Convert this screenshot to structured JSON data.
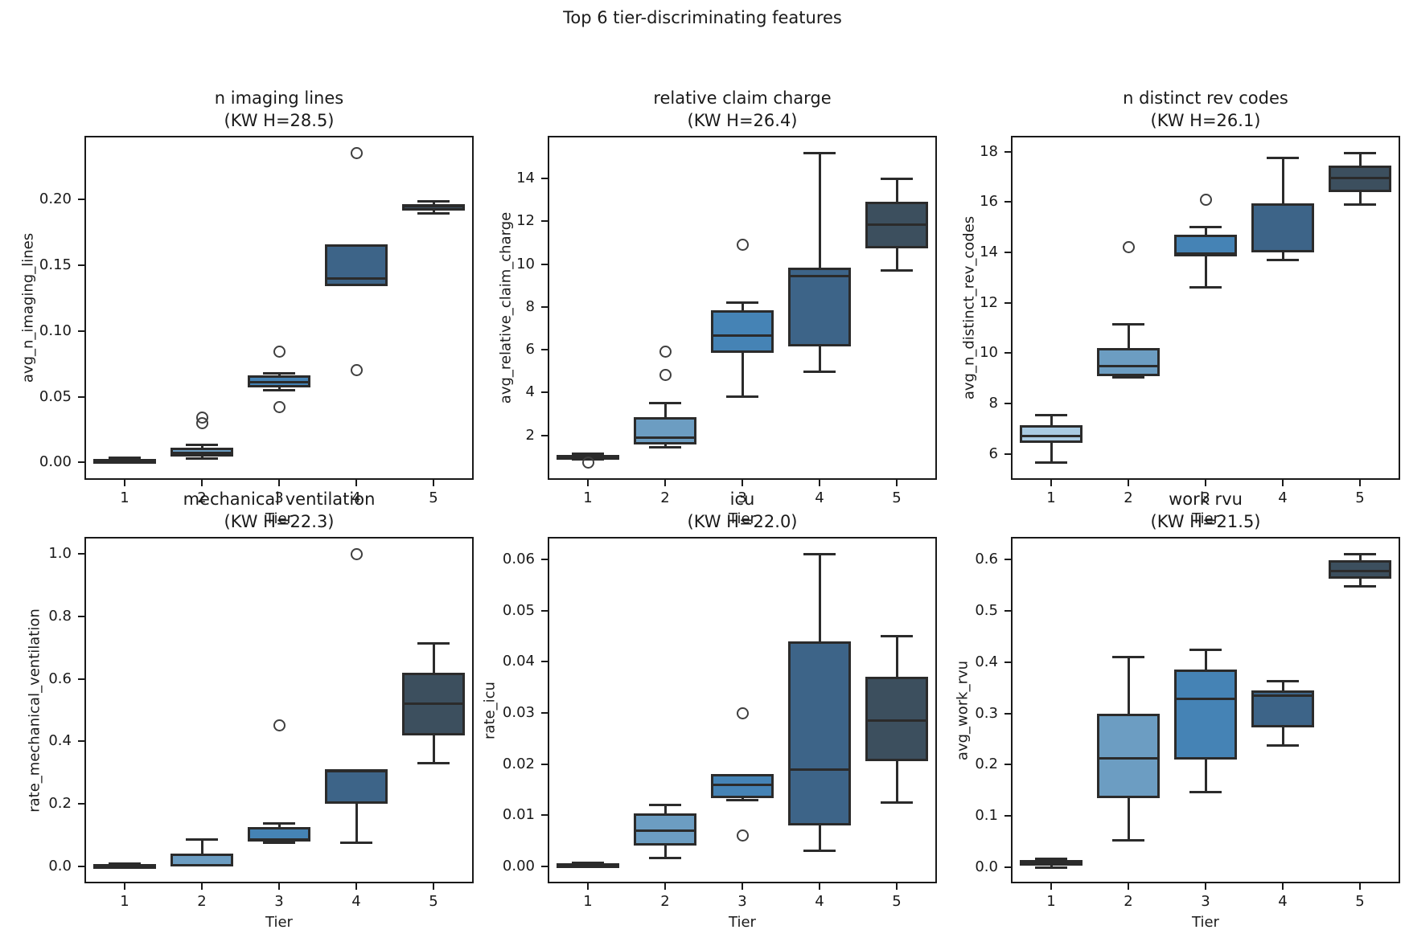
{
  "figure_title": "Top 6 tier-discriminating features",
  "xlabel": "Tier",
  "x_tick_labels": [
    "1",
    "2",
    "3",
    "4",
    "5"
  ],
  "palette": {
    "tier1": "#A9CBE3",
    "tier2": "#6C9DC2",
    "tier3": "#4583B5",
    "tier4": "#3D6488",
    "tier5": "#3C4F5E"
  },
  "edge_color": "#2B2B2B",
  "chart_data": [
    {
      "type": "box",
      "title": "n imaging lines",
      "subtitle": "(KW H=28.5)",
      "kw_h": 28.5,
      "ylabel": "avg_n_imaging_lines",
      "xlabel": "Tier",
      "categories": [
        "1",
        "2",
        "3",
        "4",
        "5"
      ],
      "ylim": [
        -0.012,
        0.247
      ],
      "yticks": [
        {
          "v": 0.0,
          "label": "0.00"
        },
        {
          "v": 0.05,
          "label": "0.05"
        },
        {
          "v": 0.1,
          "label": "0.10"
        },
        {
          "v": 0.15,
          "label": "0.15"
        },
        {
          "v": 0.2,
          "label": "0.20"
        }
      ],
      "boxes": [
        {
          "tier": "1",
          "whislo": 0.0003,
          "q1": 0.0008,
          "med": 0.0018,
          "q3": 0.0028,
          "whishi": 0.0036,
          "fliers": []
        },
        {
          "tier": "2",
          "whislo": 0.003,
          "q1": 0.0045,
          "med": 0.007,
          "q3": 0.011,
          "whishi": 0.0135,
          "fliers": [
            0.03,
            0.034
          ]
        },
        {
          "tier": "3",
          "whislo": 0.055,
          "q1": 0.057,
          "med": 0.061,
          "q3": 0.066,
          "whishi": 0.068,
          "fliers": [
            0.084,
            0.042
          ]
        },
        {
          "tier": "4",
          "whislo": 0.134,
          "q1": 0.134,
          "med": 0.14,
          "q3": 0.166,
          "whishi": 0.166,
          "fliers": [
            0.235,
            0.07
          ]
        },
        {
          "tier": "5",
          "whislo": 0.189,
          "q1": 0.1915,
          "med": 0.1945,
          "q3": 0.1965,
          "whishi": 0.1985,
          "fliers": []
        }
      ]
    },
    {
      "type": "box",
      "title": "relative claim charge",
      "subtitle": "(KW H=26.4)",
      "kw_h": 26.4,
      "ylabel": "avg_relative_claim_charge",
      "xlabel": "Tier",
      "categories": [
        "1",
        "2",
        "3",
        "4",
        "5"
      ],
      "ylim": [
        -0.01,
        15.92
      ],
      "yticks": [
        {
          "v": 2,
          "label": "2"
        },
        {
          "v": 4,
          "label": "4"
        },
        {
          "v": 6,
          "label": "6"
        },
        {
          "v": 8,
          "label": "8"
        },
        {
          "v": 10,
          "label": "10"
        },
        {
          "v": 12,
          "label": "12"
        },
        {
          "v": 14,
          "label": "14"
        }
      ],
      "boxes": [
        {
          "tier": "1",
          "whislo": 0.88,
          "q1": 0.93,
          "med": 1.0,
          "q3": 1.07,
          "whishi": 1.12,
          "fliers": [
            0.72
          ]
        },
        {
          "tier": "2",
          "whislo": 1.45,
          "q1": 1.55,
          "med": 1.9,
          "q3": 2.85,
          "whishi": 3.5,
          "fliers": [
            5.9,
            4.8
          ]
        },
        {
          "tier": "3",
          "whislo": 3.8,
          "q1": 5.85,
          "med": 6.65,
          "q3": 7.85,
          "whishi": 8.2,
          "fliers": [
            10.9
          ]
        },
        {
          "tier": "4",
          "whislo": 4.95,
          "q1": 6.15,
          "med": 9.45,
          "q3": 9.85,
          "whishi": 15.2,
          "fliers": []
        },
        {
          "tier": "5",
          "whislo": 9.7,
          "q1": 10.75,
          "med": 11.85,
          "q3": 12.9,
          "whishi": 14.0,
          "fliers": []
        }
      ]
    },
    {
      "type": "box",
      "title": "n distinct rev codes",
      "subtitle": "(KW H=26.1)",
      "kw_h": 26.1,
      "ylabel": "avg_n_distinct_rev_codes",
      "xlabel": "Tier",
      "categories": [
        "1",
        "2",
        "3",
        "4",
        "5"
      ],
      "ylim": [
        5.03,
        18.57
      ],
      "yticks": [
        {
          "v": 6,
          "label": "6"
        },
        {
          "v": 8,
          "label": "8"
        },
        {
          "v": 10,
          "label": "10"
        },
        {
          "v": 12,
          "label": "12"
        },
        {
          "v": 14,
          "label": "14"
        },
        {
          "v": 16,
          "label": "16"
        },
        {
          "v": 18,
          "label": "18"
        }
      ],
      "boxes": [
        {
          "tier": "1",
          "whislo": 5.65,
          "q1": 6.45,
          "med": 6.7,
          "q3": 7.15,
          "whishi": 7.55,
          "fliers": []
        },
        {
          "tier": "2",
          "whislo": 9.05,
          "q1": 9.1,
          "med": 9.5,
          "q3": 10.2,
          "whishi": 11.15,
          "fliers": [
            14.2
          ]
        },
        {
          "tier": "3",
          "whislo": 12.6,
          "q1": 13.85,
          "med": 13.95,
          "q3": 14.7,
          "whishi": 15.0,
          "fliers": [
            16.1
          ]
        },
        {
          "tier": "4",
          "whislo": 13.7,
          "q1": 14.0,
          "med": 15.9,
          "q3": 15.95,
          "whishi": 17.75,
          "fliers": []
        },
        {
          "tier": "5",
          "whislo": 15.9,
          "q1": 16.4,
          "med": 16.95,
          "q3": 17.45,
          "whishi": 17.95,
          "fliers": []
        }
      ]
    },
    {
      "type": "box",
      "title": "mechanical ventilation",
      "subtitle": "(KW H=22.3)",
      "kw_h": 22.3,
      "ylabel": "rate_mechanical_ventilation",
      "xlabel": "Tier",
      "categories": [
        "1",
        "2",
        "3",
        "4",
        "5"
      ],
      "ylim": [
        -0.05,
        1.05
      ],
      "yticks": [
        {
          "v": 0.0,
          "label": "0.0"
        },
        {
          "v": 0.2,
          "label": "0.2"
        },
        {
          "v": 0.4,
          "label": "0.4"
        },
        {
          "v": 0.6,
          "label": "0.6"
        },
        {
          "v": 0.8,
          "label": "0.8"
        },
        {
          "v": 1.0,
          "label": "1.0"
        }
      ],
      "boxes": [
        {
          "tier": "1",
          "whislo": 0.0,
          "q1": 0.001,
          "med": 0.004,
          "q3": 0.007,
          "whishi": 0.009,
          "fliers": []
        },
        {
          "tier": "2",
          "whislo": 0.0,
          "q1": 0.0,
          "med": 0.003,
          "q3": 0.04,
          "whishi": 0.085,
          "fliers": []
        },
        {
          "tier": "3",
          "whislo": 0.075,
          "q1": 0.078,
          "med": 0.086,
          "q3": 0.125,
          "whishi": 0.138,
          "fliers": [
            0.45
          ]
        },
        {
          "tier": "4",
          "whislo": 0.075,
          "q1": 0.2,
          "med": 0.303,
          "q3": 0.31,
          "whishi": 0.31,
          "fliers": [
            1.0
          ]
        },
        {
          "tier": "5",
          "whislo": 0.33,
          "q1": 0.42,
          "med": 0.52,
          "q3": 0.62,
          "whishi": 0.715,
          "fliers": []
        }
      ]
    },
    {
      "type": "box",
      "title": "icu",
      "subtitle": "(KW H=22.0)",
      "kw_h": 22.0,
      "ylabel": "rate_icu",
      "xlabel": "Tier",
      "categories": [
        "1",
        "2",
        "3",
        "4",
        "5"
      ],
      "ylim": [
        -0.003,
        0.0641
      ],
      "yticks": [
        {
          "v": 0.0,
          "label": "0.00"
        },
        {
          "v": 0.01,
          "label": "0.01"
        },
        {
          "v": 0.02,
          "label": "0.02"
        },
        {
          "v": 0.03,
          "label": "0.03"
        },
        {
          "v": 0.04,
          "label": "0.04"
        },
        {
          "v": 0.05,
          "label": "0.05"
        },
        {
          "v": 0.06,
          "label": "0.06"
        }
      ],
      "boxes": [
        {
          "tier": "1",
          "whislo": 0.0001,
          "q1": 0.0002,
          "med": 0.0004,
          "q3": 0.0006,
          "whishi": 0.0007,
          "fliers": []
        },
        {
          "tier": "2",
          "whislo": 0.0017,
          "q1": 0.004,
          "med": 0.007,
          "q3": 0.0103,
          "whishi": 0.012,
          "fliers": []
        },
        {
          "tier": "3",
          "whislo": 0.013,
          "q1": 0.0133,
          "med": 0.016,
          "q3": 0.018,
          "whishi": 0.018,
          "fliers": [
            0.03,
            0.006
          ]
        },
        {
          "tier": "4",
          "whislo": 0.003,
          "q1": 0.008,
          "med": 0.019,
          "q3": 0.044,
          "whishi": 0.061,
          "fliers": []
        },
        {
          "tier": "5",
          "whislo": 0.0125,
          "q1": 0.0205,
          "med": 0.0285,
          "q3": 0.037,
          "whishi": 0.045,
          "fliers": []
        }
      ]
    },
    {
      "type": "box",
      "title": "work rvu",
      "subtitle": "(KW H=21.5)",
      "kw_h": 21.5,
      "ylabel": "avg_work_rvu",
      "xlabel": "Tier",
      "categories": [
        "1",
        "2",
        "3",
        "4",
        "5"
      ],
      "ylim": [
        -0.028,
        0.641
      ],
      "yticks": [
        {
          "v": 0.0,
          "label": "0.0"
        },
        {
          "v": 0.1,
          "label": "0.1"
        },
        {
          "v": 0.2,
          "label": "0.2"
        },
        {
          "v": 0.3,
          "label": "0.3"
        },
        {
          "v": 0.4,
          "label": "0.4"
        },
        {
          "v": 0.5,
          "label": "0.5"
        },
        {
          "v": 0.6,
          "label": "0.6"
        }
      ],
      "boxes": [
        {
          "tier": "1",
          "whislo": 0.0,
          "q1": 0.003,
          "med": 0.007,
          "q3": 0.015,
          "whishi": 0.017,
          "fliers": []
        },
        {
          "tier": "2",
          "whislo": 0.052,
          "q1": 0.135,
          "med": 0.212,
          "q3": 0.3,
          "whishi": 0.41,
          "fliers": []
        },
        {
          "tier": "3",
          "whislo": 0.147,
          "q1": 0.21,
          "med": 0.328,
          "q3": 0.385,
          "whishi": 0.424,
          "fliers": []
        },
        {
          "tier": "4",
          "whislo": 0.237,
          "q1": 0.273,
          "med": 0.335,
          "q3": 0.345,
          "whishi": 0.363,
          "fliers": []
        },
        {
          "tier": "5",
          "whislo": 0.548,
          "q1": 0.563,
          "med": 0.578,
          "q3": 0.598,
          "whishi": 0.61,
          "fliers": []
        }
      ]
    }
  ]
}
